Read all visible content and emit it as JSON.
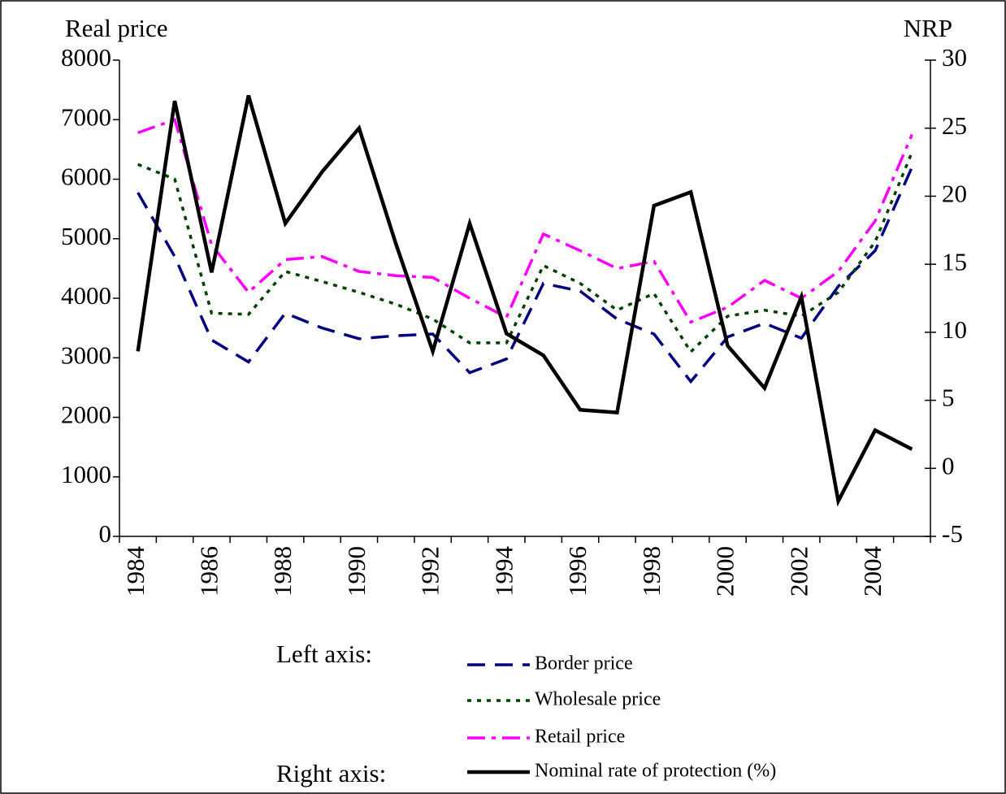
{
  "chart_data": {
    "type": "line",
    "y_label": "Real price",
    "y2_label": "NRP",
    "categories": [
      "1984",
      null,
      "1986",
      null,
      "1988",
      null,
      "1990",
      null,
      "1992",
      null,
      "1994",
      null,
      "1996",
      null,
      "1998",
      null,
      "2000",
      null,
      "2002",
      null,
      "2004",
      null
    ],
    "ylim": [
      0,
      8000
    ],
    "yticks": [
      0,
      1000,
      2000,
      3000,
      4000,
      5000,
      6000,
      7000,
      8000
    ],
    "y2lim": [
      -5,
      30
    ],
    "y2ticks": [
      -5,
      0,
      5,
      10,
      15,
      20,
      25,
      30
    ],
    "legend_headings": [
      "Left axis:",
      "Right axis:"
    ],
    "series": [
      {
        "name": "Border price",
        "color": "#000080",
        "dash": "dashed",
        "values": [
          5775,
          4700,
          3300,
          2930,
          3750,
          3500,
          3320,
          3370,
          3400,
          2750,
          2980,
          4250,
          4120,
          3650,
          3400,
          2600,
          3350,
          3580,
          3330,
          4200,
          4800,
          6200
        ]
      },
      {
        "name": "Wholesale price",
        "color": "#004000",
        "dash": "dotted",
        "values": [
          6250,
          6000,
          3750,
          3730,
          4450,
          4280,
          4100,
          3900,
          3650,
          3250,
          3250,
          4550,
          4250,
          3800,
          4080,
          3100,
          3700,
          3800,
          3700,
          4100,
          4950,
          6450
        ]
      },
      {
        "name": "Retail price",
        "color": "#ff00ff",
        "dash": "dashdot",
        "values": [
          6780,
          7000,
          4900,
          4100,
          4650,
          4700,
          4450,
          4380,
          4350,
          4000,
          3680,
          5080,
          4800,
          4500,
          4620,
          3600,
          3850,
          4300,
          4000,
          4450,
          5300,
          6750
        ]
      },
      {
        "name": "Nominal rate of protection (%)",
        "color": "#000000",
        "dash": "solid",
        "axis": "y2",
        "values": [
          8.6,
          27,
          14.4,
          27.4,
          18,
          21.8,
          25,
          16.5,
          8.6,
          18,
          9.9,
          8.3,
          4.3,
          4.1,
          19.3,
          20.3,
          9,
          5.9,
          12.6,
          -2.4,
          2.8,
          1.4
        ]
      }
    ]
  }
}
